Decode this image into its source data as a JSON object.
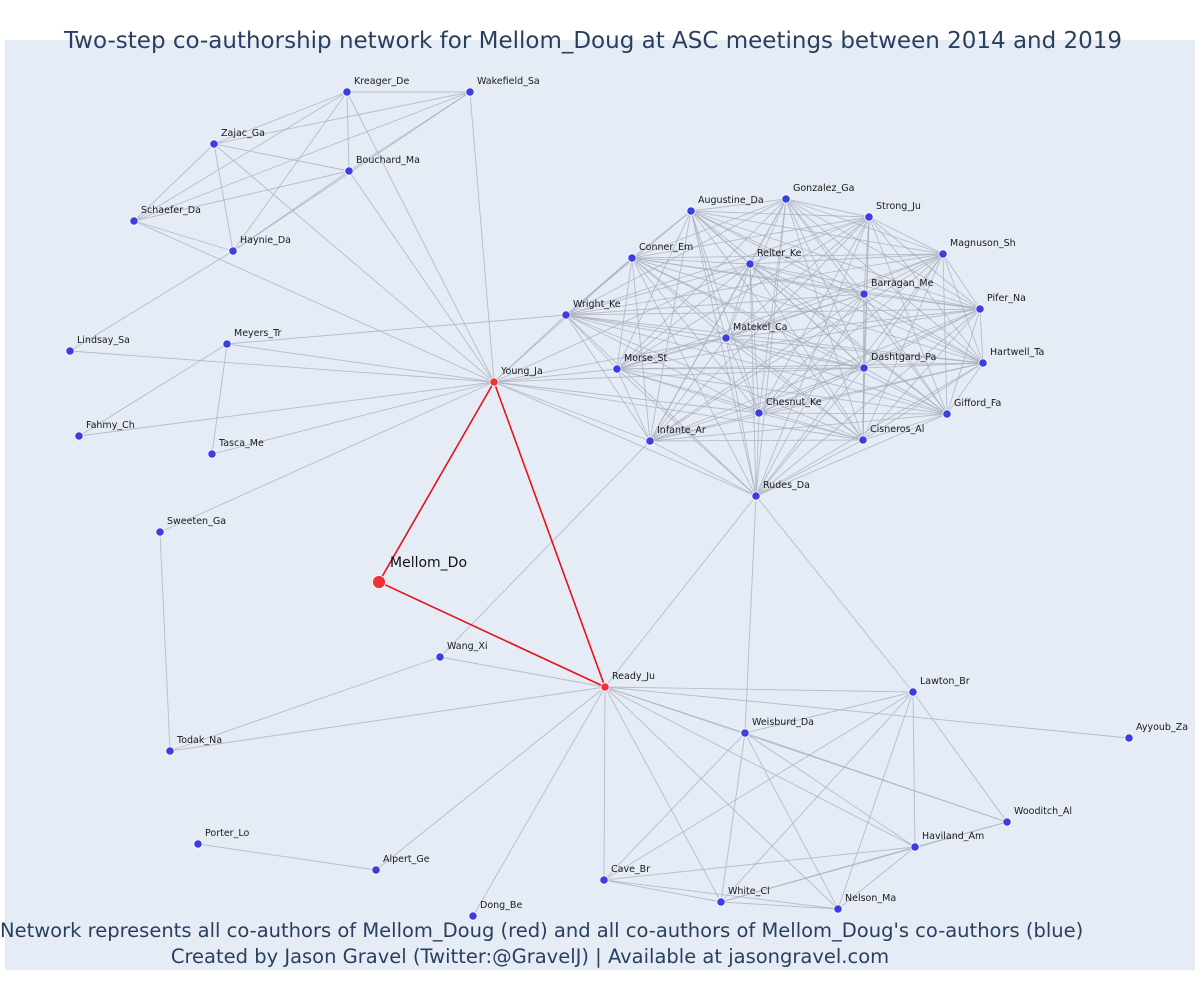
{
  "title": "Two-step co-authorship network for Mellom_Doug at ASC meetings between 2014 and 2019",
  "footer": {
    "line1": "Network represents all co-authors of Mellom_Doug (red) and all co-authors of Mellom_Doug's co-authors (blue)",
    "line2": "Created by Jason Gravel (Twitter:@GravelJ) | Available at jasongravel.com"
  },
  "colors": {
    "plot_background": "#e5ecf6",
    "edge_gray": "#a8acb9",
    "edge_red": "#e8121a",
    "node_blue": "#3b3fe0",
    "node_red": "#ee3238"
  },
  "nodes": [
    {
      "id": "Mellom_Do",
      "label": "Mellom_Do",
      "group": "focal"
    },
    {
      "id": "Young_Ja",
      "label": "Young_Ja",
      "group": "coauthor"
    },
    {
      "id": "Ready_Ju",
      "label": "Ready_Ju",
      "group": "coauthor"
    },
    {
      "id": "Kreager_De",
      "label": "Kreager_De",
      "group": "second"
    },
    {
      "id": "Wakefield_Sa",
      "label": "Wakefield_Sa",
      "group": "second"
    },
    {
      "id": "Zajac_Ga",
      "label": "Zajac_Ga",
      "group": "second"
    },
    {
      "id": "Bouchard_Ma",
      "label": "Bouchard_Ma",
      "group": "second"
    },
    {
      "id": "Schaefer_Da",
      "label": "Schaefer_Da",
      "group": "second"
    },
    {
      "id": "Haynie_Da",
      "label": "Haynie_Da",
      "group": "second"
    },
    {
      "id": "Lindsay_Sa",
      "label": "Lindsay_Sa",
      "group": "second"
    },
    {
      "id": "Meyers_Tr",
      "label": "Meyers_Tr",
      "group": "second"
    },
    {
      "id": "Fahmy_Ch",
      "label": "Fahmy_Ch",
      "group": "second"
    },
    {
      "id": "Tasca_Me",
      "label": "Tasca_Me",
      "group": "second"
    },
    {
      "id": "Sweeten_Ga",
      "label": "Sweeten_Ga",
      "group": "second"
    },
    {
      "id": "Todak_Na",
      "label": "Todak_Na",
      "group": "second"
    },
    {
      "id": "Wang_Xi",
      "label": "Wang_Xi",
      "group": "second"
    },
    {
      "id": "Porter_Lo",
      "label": "Porter_Lo",
      "group": "second"
    },
    {
      "id": "Alpert_Ge",
      "label": "Alpert_Ge",
      "group": "second"
    },
    {
      "id": "Dong_Be",
      "label": "Dong_Be",
      "group": "second"
    },
    {
      "id": "Cave_Br",
      "label": "Cave_Br",
      "group": "second"
    },
    {
      "id": "White_Cl",
      "label": "White_Cl",
      "group": "second"
    },
    {
      "id": "Nelson_Ma",
      "label": "Nelson_Ma",
      "group": "second"
    },
    {
      "id": "Haviland_Am",
      "label": "Haviland_Am",
      "group": "second"
    },
    {
      "id": "Wooditch_Al",
      "label": "Wooditch_Al",
      "group": "second"
    },
    {
      "id": "Weisburd_Da",
      "label": "Weisburd_Da",
      "group": "second"
    },
    {
      "id": "Lawton_Br",
      "label": "Lawton_Br",
      "group": "second"
    },
    {
      "id": "Ayyoub_Za",
      "label": "Ayyoub_Za",
      "group": "second"
    },
    {
      "id": "Augustine_Da",
      "label": "Augustine_Da",
      "group": "second"
    },
    {
      "id": "Gonzalez_Ga",
      "label": "Gonzalez_Ga",
      "group": "second"
    },
    {
      "id": "Strong_Ju",
      "label": "Strong_Ju",
      "group": "second"
    },
    {
      "id": "Conner_Em",
      "label": "Conner_Em",
      "group": "second"
    },
    {
      "id": "Relter_Ke",
      "label": "Relter_Ke",
      "group": "second"
    },
    {
      "id": "Magnuson_Sh",
      "label": "Magnuson_Sh",
      "group": "second"
    },
    {
      "id": "Barragan_Me",
      "label": "Barragan_Me",
      "group": "second"
    },
    {
      "id": "Wright_Ke",
      "label": "Wright_Ke",
      "group": "second"
    },
    {
      "id": "Pifer_Na",
      "label": "Pifer_Na",
      "group": "second"
    },
    {
      "id": "Matekel_Ca",
      "label": "Matekel_Ca",
      "group": "second"
    },
    {
      "id": "Morse_St",
      "label": "Morse_St",
      "group": "second"
    },
    {
      "id": "Dashtgard_Pa",
      "label": "Dashtgard_Pa",
      "group": "second"
    },
    {
      "id": "Hartwell_Ta",
      "label": "Hartwell_Ta",
      "group": "second"
    },
    {
      "id": "Chesnut_Ke",
      "label": "Chesnut_Ke",
      "group": "second"
    },
    {
      "id": "Gifford_Fa",
      "label": "Gifford_Fa",
      "group": "second"
    },
    {
      "id": "Infante_Ar",
      "label": "Infante_Ar",
      "group": "second"
    },
    {
      "id": "Cisneros_Al",
      "label": "Cisneros_Al",
      "group": "second"
    },
    {
      "id": "Rudes_Da",
      "label": "Rudes_Da",
      "group": "second"
    }
  ],
  "red_edges": [
    [
      "Mellom_Do",
      "Young_Ja"
    ],
    [
      "Mellom_Do",
      "Ready_Ju"
    ],
    [
      "Young_Ja",
      "Ready_Ju"
    ]
  ],
  "edges": [
    [
      "Kreager_De",
      "Wakefield_Sa"
    ],
    [
      "Kreager_De",
      "Zajac_Ga"
    ],
    [
      "Kreager_De",
      "Bouchard_Ma"
    ],
    [
      "Kreager_De",
      "Schaefer_Da"
    ],
    [
      "Kreager_De",
      "Haynie_Da"
    ],
    [
      "Kreager_De",
      "Young_Ja"
    ],
    [
      "Wakefield_Sa",
      "Zajac_Ga"
    ],
    [
      "Wakefield_Sa",
      "Bouchard_Ma"
    ],
    [
      "Wakefield_Sa",
      "Schaefer_Da"
    ],
    [
      "Wakefield_Sa",
      "Haynie_Da"
    ],
    [
      "Wakefield_Sa",
      "Young_Ja"
    ],
    [
      "Zajac_Ga",
      "Bouchard_Ma"
    ],
    [
      "Zajac_Ga",
      "Schaefer_Da"
    ],
    [
      "Zajac_Ga",
      "Haynie_Da"
    ],
    [
      "Zajac_Ga",
      "Young_Ja"
    ],
    [
      "Bouchard_Ma",
      "Schaefer_Da"
    ],
    [
      "Bouchard_Ma",
      "Haynie_Da"
    ],
    [
      "Bouchard_Ma",
      "Young_Ja"
    ],
    [
      "Schaefer_Da",
      "Haynie_Da"
    ],
    [
      "Schaefer_Da",
      "Young_Ja"
    ],
    [
      "Haynie_Da",
      "Lindsay_Sa"
    ],
    [
      "Lindsay_Sa",
      "Young_Ja"
    ],
    [
      "Meyers_Tr",
      "Young_Ja"
    ],
    [
      "Meyers_Tr",
      "Fahmy_Ch"
    ],
    [
      "Meyers_Tr",
      "Tasca_Me"
    ],
    [
      "Meyers_Tr",
      "Wright_Ke"
    ],
    [
      "Fahmy_Ch",
      "Young_Ja"
    ],
    [
      "Tasca_Me",
      "Young_Ja"
    ],
    [
      "Sweeten_Ga",
      "Young_Ja"
    ],
    [
      "Sweeten_Ga",
      "Todak_Na"
    ],
    [
      "Todak_Na",
      "Ready_Ju"
    ],
    [
      "Todak_Na",
      "Wang_Xi"
    ],
    [
      "Wang_Xi",
      "Ready_Ju"
    ],
    [
      "Wang_Xi",
      "Infante_Ar"
    ],
    [
      "Porter_Lo",
      "Alpert_Ge"
    ],
    [
      "Alpert_Ge",
      "Ready_Ju"
    ],
    [
      "Dong_Be",
      "Ready_Ju"
    ],
    [
      "Ready_Ju",
      "Cave_Br"
    ],
    [
      "Ready_Ju",
      "White_Cl"
    ],
    [
      "Ready_Ju",
      "Nelson_Ma"
    ],
    [
      "Ready_Ju",
      "Haviland_Am"
    ],
    [
      "Ready_Ju",
      "Wooditch_Al"
    ],
    [
      "Ready_Ju",
      "Weisburd_Da"
    ],
    [
      "Ready_Ju",
      "Lawton_Br"
    ],
    [
      "Ready_Ju",
      "Ayyoub_Za"
    ],
    [
      "Ready_Ju",
      "Rudes_Da"
    ],
    [
      "Weisburd_Da",
      "Lawton_Br"
    ],
    [
      "Weisburd_Da",
      "Cave_Br"
    ],
    [
      "Weisburd_Da",
      "White_Cl"
    ],
    [
      "Weisburd_Da",
      "Nelson_Ma"
    ],
    [
      "Weisburd_Da",
      "Haviland_Am"
    ],
    [
      "Weisburd_Da",
      "Wooditch_Al"
    ],
    [
      "Weisburd_Da",
      "Rudes_Da"
    ],
    [
      "Lawton_Br",
      "Cave_Br"
    ],
    [
      "Lawton_Br",
      "White_Cl"
    ],
    [
      "Lawton_Br",
      "Nelson_Ma"
    ],
    [
      "Lawton_Br",
      "Haviland_Am"
    ],
    [
      "Lawton_Br",
      "Wooditch_Al"
    ],
    [
      "Lawton_Br",
      "Rudes_Da"
    ],
    [
      "Cave_Br",
      "White_Cl"
    ],
    [
      "Cave_Br",
      "Nelson_Ma"
    ],
    [
      "Cave_Br",
      "Haviland_Am"
    ],
    [
      "White_Cl",
      "Nelson_Ma"
    ],
    [
      "White_Cl",
      "Haviland_Am"
    ],
    [
      "White_Cl",
      "Wooditch_Al"
    ],
    [
      "Nelson_Ma",
      "Haviland_Am"
    ],
    [
      "Haviland_Am",
      "Wooditch_Al"
    ],
    [
      "Young_Ja",
      "Wright_Ke"
    ],
    [
      "Young_Ja",
      "Conner_Em"
    ],
    [
      "Young_Ja",
      "Morse_St"
    ],
    [
      "Young_Ja",
      "Matekel_Ca"
    ],
    [
      "Young_Ja",
      "Infante_Ar"
    ],
    [
      "Young_Ja",
      "Chesnut_Ke"
    ],
    [
      "Young_Ja",
      "Rudes_Da"
    ],
    [
      "Young_Ja",
      "Dashtgard_Pa"
    ],
    [
      "Young_Ja",
      "Cisneros_Al"
    ],
    [
      "Young_Ja",
      "Relter_Ke"
    ],
    [
      "Augustine_Da",
      "Gonzalez_Ga"
    ],
    [
      "Augustine_Da",
      "Strong_Ju"
    ],
    [
      "Augustine_Da",
      "Conner_Em"
    ],
    [
      "Augustine_Da",
      "Relter_Ke"
    ],
    [
      "Augustine_Da",
      "Magnuson_Sh"
    ],
    [
      "Augustine_Da",
      "Barragan_Me"
    ],
    [
      "Augustine_Da",
      "Wright_Ke"
    ],
    [
      "Augustine_Da",
      "Pifer_Na"
    ],
    [
      "Augustine_Da",
      "Matekel_Ca"
    ],
    [
      "Augustine_Da",
      "Morse_St"
    ],
    [
      "Augustine_Da",
      "Dashtgard_Pa"
    ],
    [
      "Augustine_Da",
      "Hartwell_Ta"
    ],
    [
      "Augustine_Da",
      "Chesnut_Ke"
    ],
    [
      "Augustine_Da",
      "Gifford_Fa"
    ],
    [
      "Augustine_Da",
      "Infante_Ar"
    ],
    [
      "Augustine_Da",
      "Cisneros_Al"
    ],
    [
      "Augustine_Da",
      "Rudes_Da"
    ],
    [
      "Gonzalez_Ga",
      "Strong_Ju"
    ],
    [
      "Gonzalez_Ga",
      "Conner_Em"
    ],
    [
      "Gonzalez_Ga",
      "Relter_Ke"
    ],
    [
      "Gonzalez_Ga",
      "Magnuson_Sh"
    ],
    [
      "Gonzalez_Ga",
      "Barragan_Me"
    ],
    [
      "Gonzalez_Ga",
      "Wright_Ke"
    ],
    [
      "Gonzalez_Ga",
      "Pifer_Na"
    ],
    [
      "Gonzalez_Ga",
      "Matekel_Ca"
    ],
    [
      "Gonzalez_Ga",
      "Morse_St"
    ],
    [
      "Gonzalez_Ga",
      "Dashtgard_Pa"
    ],
    [
      "Gonzalez_Ga",
      "Hartwell_Ta"
    ],
    [
      "Gonzalez_Ga",
      "Chesnut_Ke"
    ],
    [
      "Gonzalez_Ga",
      "Gifford_Fa"
    ],
    [
      "Gonzalez_Ga",
      "Infante_Ar"
    ],
    [
      "Gonzalez_Ga",
      "Cisneros_Al"
    ],
    [
      "Gonzalez_Ga",
      "Rudes_Da"
    ],
    [
      "Strong_Ju",
      "Conner_Em"
    ],
    [
      "Strong_Ju",
      "Relter_Ke"
    ],
    [
      "Strong_Ju",
      "Magnuson_Sh"
    ],
    [
      "Strong_Ju",
      "Barragan_Me"
    ],
    [
      "Strong_Ju",
      "Wright_Ke"
    ],
    [
      "Strong_Ju",
      "Pifer_Na"
    ],
    [
      "Strong_Ju",
      "Matekel_Ca"
    ],
    [
      "Strong_Ju",
      "Morse_St"
    ],
    [
      "Strong_Ju",
      "Dashtgard_Pa"
    ],
    [
      "Strong_Ju",
      "Hartwell_Ta"
    ],
    [
      "Strong_Ju",
      "Chesnut_Ke"
    ],
    [
      "Strong_Ju",
      "Gifford_Fa"
    ],
    [
      "Strong_Ju",
      "Infante_Ar"
    ],
    [
      "Strong_Ju",
      "Cisneros_Al"
    ],
    [
      "Strong_Ju",
      "Rudes_Da"
    ],
    [
      "Conner_Em",
      "Relter_Ke"
    ],
    [
      "Conner_Em",
      "Magnuson_Sh"
    ],
    [
      "Conner_Em",
      "Barragan_Me"
    ],
    [
      "Conner_Em",
      "Wright_Ke"
    ],
    [
      "Conner_Em",
      "Pifer_Na"
    ],
    [
      "Conner_Em",
      "Matekel_Ca"
    ],
    [
      "Conner_Em",
      "Morse_St"
    ],
    [
      "Conner_Em",
      "Dashtgard_Pa"
    ],
    [
      "Conner_Em",
      "Hartwell_Ta"
    ],
    [
      "Conner_Em",
      "Chesnut_Ke"
    ],
    [
      "Conner_Em",
      "Gifford_Fa"
    ],
    [
      "Conner_Em",
      "Infante_Ar"
    ],
    [
      "Conner_Em",
      "Cisneros_Al"
    ],
    [
      "Conner_Em",
      "Rudes_Da"
    ],
    [
      "Relter_Ke",
      "Magnuson_Sh"
    ],
    [
      "Relter_Ke",
      "Barragan_Me"
    ],
    [
      "Relter_Ke",
      "Wright_Ke"
    ],
    [
      "Relter_Ke",
      "Pifer_Na"
    ],
    [
      "Relter_Ke",
      "Matekel_Ca"
    ],
    [
      "Relter_Ke",
      "Morse_St"
    ],
    [
      "Relter_Ke",
      "Dashtgard_Pa"
    ],
    [
      "Relter_Ke",
      "Hartwell_Ta"
    ],
    [
      "Relter_Ke",
      "Chesnut_Ke"
    ],
    [
      "Relter_Ke",
      "Gifford_Fa"
    ],
    [
      "Relter_Ke",
      "Infante_Ar"
    ],
    [
      "Relter_Ke",
      "Cisneros_Al"
    ],
    [
      "Relter_Ke",
      "Rudes_Da"
    ],
    [
      "Magnuson_Sh",
      "Barragan_Me"
    ],
    [
      "Magnuson_Sh",
      "Wright_Ke"
    ],
    [
      "Magnuson_Sh",
      "Pifer_Na"
    ],
    [
      "Magnuson_Sh",
      "Matekel_Ca"
    ],
    [
      "Magnuson_Sh",
      "Morse_St"
    ],
    [
      "Magnuson_Sh",
      "Dashtgard_Pa"
    ],
    [
      "Magnuson_Sh",
      "Hartwell_Ta"
    ],
    [
      "Magnuson_Sh",
      "Chesnut_Ke"
    ],
    [
      "Magnuson_Sh",
      "Gifford_Fa"
    ],
    [
      "Magnuson_Sh",
      "Infante_Ar"
    ],
    [
      "Magnuson_Sh",
      "Cisneros_Al"
    ],
    [
      "Magnuson_Sh",
      "Rudes_Da"
    ],
    [
      "Barragan_Me",
      "Wright_Ke"
    ],
    [
      "Barragan_Me",
      "Pifer_Na"
    ],
    [
      "Barragan_Me",
      "Matekel_Ca"
    ],
    [
      "Barragan_Me",
      "Morse_St"
    ],
    [
      "Barragan_Me",
      "Dashtgard_Pa"
    ],
    [
      "Barragan_Me",
      "Hartwell_Ta"
    ],
    [
      "Barragan_Me",
      "Chesnut_Ke"
    ],
    [
      "Barragan_Me",
      "Gifford_Fa"
    ],
    [
      "Barragan_Me",
      "Infante_Ar"
    ],
    [
      "Barragan_Me",
      "Cisneros_Al"
    ],
    [
      "Barragan_Me",
      "Rudes_Da"
    ],
    [
      "Wright_Ke",
      "Pifer_Na"
    ],
    [
      "Wright_Ke",
      "Matekel_Ca"
    ],
    [
      "Wright_Ke",
      "Morse_St"
    ],
    [
      "Wright_Ke",
      "Dashtgard_Pa"
    ],
    [
      "Wright_Ke",
      "Hartwell_Ta"
    ],
    [
      "Wright_Ke",
      "Chesnut_Ke"
    ],
    [
      "Wright_Ke",
      "Gifford_Fa"
    ],
    [
      "Wright_Ke",
      "Infante_Ar"
    ],
    [
      "Wright_Ke",
      "Cisneros_Al"
    ],
    [
      "Wright_Ke",
      "Rudes_Da"
    ],
    [
      "Pifer_Na",
      "Matekel_Ca"
    ],
    [
      "Pifer_Na",
      "Morse_St"
    ],
    [
      "Pifer_Na",
      "Dashtgard_Pa"
    ],
    [
      "Pifer_Na",
      "Hartwell_Ta"
    ],
    [
      "Pifer_Na",
      "Chesnut_Ke"
    ],
    [
      "Pifer_Na",
      "Gifford_Fa"
    ],
    [
      "Pifer_Na",
      "Infante_Ar"
    ],
    [
      "Pifer_Na",
      "Cisneros_Al"
    ],
    [
      "Pifer_Na",
      "Rudes_Da"
    ],
    [
      "Matekel_Ca",
      "Morse_St"
    ],
    [
      "Matekel_Ca",
      "Dashtgard_Pa"
    ],
    [
      "Matekel_Ca",
      "Hartwell_Ta"
    ],
    [
      "Matekel_Ca",
      "Chesnut_Ke"
    ],
    [
      "Matekel_Ca",
      "Gifford_Fa"
    ],
    [
      "Matekel_Ca",
      "Infante_Ar"
    ],
    [
      "Matekel_Ca",
      "Cisneros_Al"
    ],
    [
      "Matekel_Ca",
      "Rudes_Da"
    ],
    [
      "Morse_St",
      "Dashtgard_Pa"
    ],
    [
      "Morse_St",
      "Hartwell_Ta"
    ],
    [
      "Morse_St",
      "Chesnut_Ke"
    ],
    [
      "Morse_St",
      "Gifford_Fa"
    ],
    [
      "Morse_St",
      "Infante_Ar"
    ],
    [
      "Morse_St",
      "Cisneros_Al"
    ],
    [
      "Morse_St",
      "Rudes_Da"
    ],
    [
      "Dashtgard_Pa",
      "Hartwell_Ta"
    ],
    [
      "Dashtgard_Pa",
      "Chesnut_Ke"
    ],
    [
      "Dashtgard_Pa",
      "Gifford_Fa"
    ],
    [
      "Dashtgard_Pa",
      "Infante_Ar"
    ],
    [
      "Dashtgard_Pa",
      "Cisneros_Al"
    ],
    [
      "Dashtgard_Pa",
      "Rudes_Da"
    ],
    [
      "Hartwell_Ta",
      "Chesnut_Ke"
    ],
    [
      "Hartwell_Ta",
      "Gifford_Fa"
    ],
    [
      "Hartwell_Ta",
      "Infante_Ar"
    ],
    [
      "Hartwell_Ta",
      "Cisneros_Al"
    ],
    [
      "Hartwell_Ta",
      "Rudes_Da"
    ],
    [
      "Chesnut_Ke",
      "Gifford_Fa"
    ],
    [
      "Chesnut_Ke",
      "Infante_Ar"
    ],
    [
      "Chesnut_Ke",
      "Cisneros_Al"
    ],
    [
      "Chesnut_Ke",
      "Rudes_Da"
    ],
    [
      "Gifford_Fa",
      "Infante_Ar"
    ],
    [
      "Gifford_Fa",
      "Cisneros_Al"
    ],
    [
      "Gifford_Fa",
      "Rudes_Da"
    ],
    [
      "Infante_Ar",
      "Cisneros_Al"
    ],
    [
      "Infante_Ar",
      "Rudes_Da"
    ],
    [
      "Cisneros_Al",
      "Rudes_Da"
    ]
  ]
}
